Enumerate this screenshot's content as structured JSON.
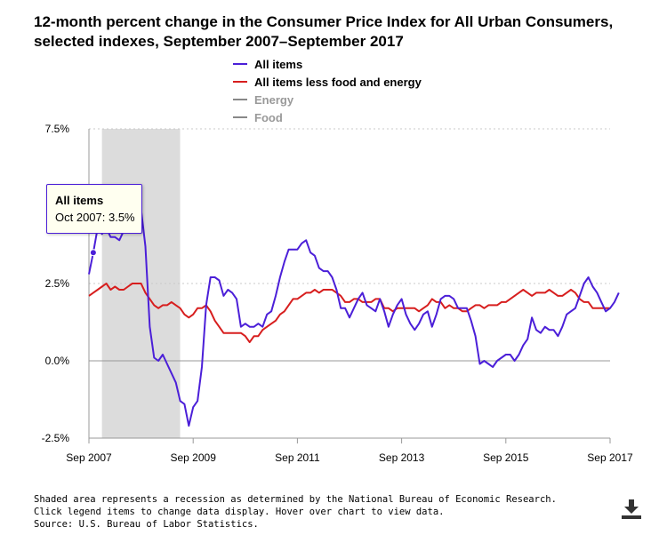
{
  "chart_data": {
    "type": "line",
    "title": "12-month percent change in the Consumer Price Index for All Urban Consumers, selected indexes, September 2007–September 2017",
    "xlabel": "",
    "ylabel": "",
    "start": "Sep 2007",
    "end": "Sep 2017",
    "ylim": [
      -2.5,
      7.5
    ],
    "yticks": [
      -2.5,
      0,
      2.5,
      7.5
    ],
    "ytick_labels": [
      "-2.5%",
      "0.0%",
      "2.5%",
      "7.5%"
    ],
    "xtick_labels": [
      "Sep 2007",
      "Sep 2009",
      "Sep 2011",
      "Sep 2013",
      "Sep 2015",
      "Sep 2017"
    ],
    "xtick_months": [
      0,
      24,
      48,
      72,
      96,
      120
    ],
    "recession": {
      "start_month": 3,
      "end_month": 21,
      "color": "#dcdcdc"
    },
    "legend": [
      {
        "name": "All items",
        "color": "#4b1fd8",
        "active": true
      },
      {
        "name": "All items less food and energy",
        "color": "#d71e1e",
        "active": true
      },
      {
        "name": "Energy",
        "color": "#888888",
        "active": false
      },
      {
        "name": "Food",
        "color": "#888888",
        "active": false
      }
    ],
    "series": [
      {
        "name": "All items",
        "color": "#4b1fd8",
        "values": [
          2.8,
          3.5,
          4.3,
          4.1,
          4.3,
          4.0,
          4.0,
          3.9,
          4.2,
          5.0,
          5.6,
          5.4,
          4.9,
          3.7,
          1.1,
          0.1,
          0.0,
          0.2,
          -0.1,
          -0.4,
          -0.7,
          -1.3,
          -1.4,
          -2.1,
          -1.5,
          -1.3,
          -0.2,
          1.8,
          2.7,
          2.7,
          2.6,
          2.1,
          2.3,
          2.2,
          2.0,
          1.1,
          1.2,
          1.1,
          1.1,
          1.2,
          1.1,
          1.5,
          1.6,
          2.1,
          2.7,
          3.2,
          3.6,
          3.6,
          3.6,
          3.8,
          3.9,
          3.5,
          3.4,
          3.0,
          2.9,
          2.9,
          2.7,
          2.3,
          1.7,
          1.7,
          1.4,
          1.7,
          2.0,
          2.2,
          1.8,
          1.7,
          1.6,
          2.0,
          1.6,
          1.1,
          1.5,
          1.8,
          2.0,
          1.5,
          1.2,
          1.0,
          1.2,
          1.5,
          1.6,
          1.1,
          1.5,
          2.0,
          2.1,
          2.1,
          2.0,
          1.7,
          1.7,
          1.7,
          1.3,
          0.8,
          -0.1,
          0.0,
          -0.1,
          -0.2,
          0.0,
          0.1,
          0.2,
          0.2,
          0.0,
          0.2,
          0.5,
          0.7,
          1.4,
          1.0,
          0.9,
          1.1,
          1.0,
          1.0,
          0.8,
          1.1,
          1.5,
          1.6,
          1.7,
          2.1,
          2.5,
          2.7,
          2.4,
          2.2,
          1.9,
          1.6,
          1.7,
          1.9,
          2.2
        ]
      },
      {
        "name": "All items less food and energy",
        "color": "#d71e1e",
        "values": [
          2.1,
          2.2,
          2.3,
          2.4,
          2.5,
          2.3,
          2.4,
          2.3,
          2.3,
          2.4,
          2.5,
          2.5,
          2.5,
          2.2,
          2.0,
          1.8,
          1.7,
          1.8,
          1.8,
          1.9,
          1.8,
          1.7,
          1.5,
          1.4,
          1.5,
          1.7,
          1.7,
          1.8,
          1.6,
          1.3,
          1.1,
          0.9,
          0.9,
          0.9,
          0.9,
          0.9,
          0.8,
          0.6,
          0.8,
          0.8,
          1.0,
          1.1,
          1.2,
          1.3,
          1.5,
          1.6,
          1.8,
          2.0,
          2.0,
          2.1,
          2.2,
          2.2,
          2.3,
          2.2,
          2.3,
          2.3,
          2.3,
          2.2,
          2.1,
          1.9,
          1.9,
          2.0,
          2.0,
          1.9,
          1.9,
          1.9,
          2.0,
          2.0,
          1.7,
          1.7,
          1.6,
          1.7,
          1.7,
          1.7,
          1.7,
          1.7,
          1.6,
          1.7,
          1.8,
          2.0,
          1.9,
          1.9,
          1.7,
          1.8,
          1.7,
          1.7,
          1.6,
          1.6,
          1.7,
          1.8,
          1.8,
          1.7,
          1.8,
          1.8,
          1.8,
          1.9,
          1.9,
          2.0,
          2.1,
          2.2,
          2.3,
          2.2,
          2.1,
          2.2,
          2.2,
          2.2,
          2.3,
          2.2,
          2.1,
          2.1,
          2.2,
          2.3,
          2.2,
          2.0,
          1.9,
          1.9,
          1.7,
          1.7,
          1.7,
          1.7,
          1.7
        ]
      }
    ]
  },
  "tooltip": {
    "title": "All items",
    "value": "Oct 2007: 3.5%"
  },
  "footnotes": [
    "Shaded area represents a recession as determined by the National Bureau of Economic Research.",
    "Click legend items to change data display. Hover over chart to view data.",
    "Source: U.S. Bureau of Labor Statistics."
  ],
  "download": {
    "icon": "download-icon"
  }
}
